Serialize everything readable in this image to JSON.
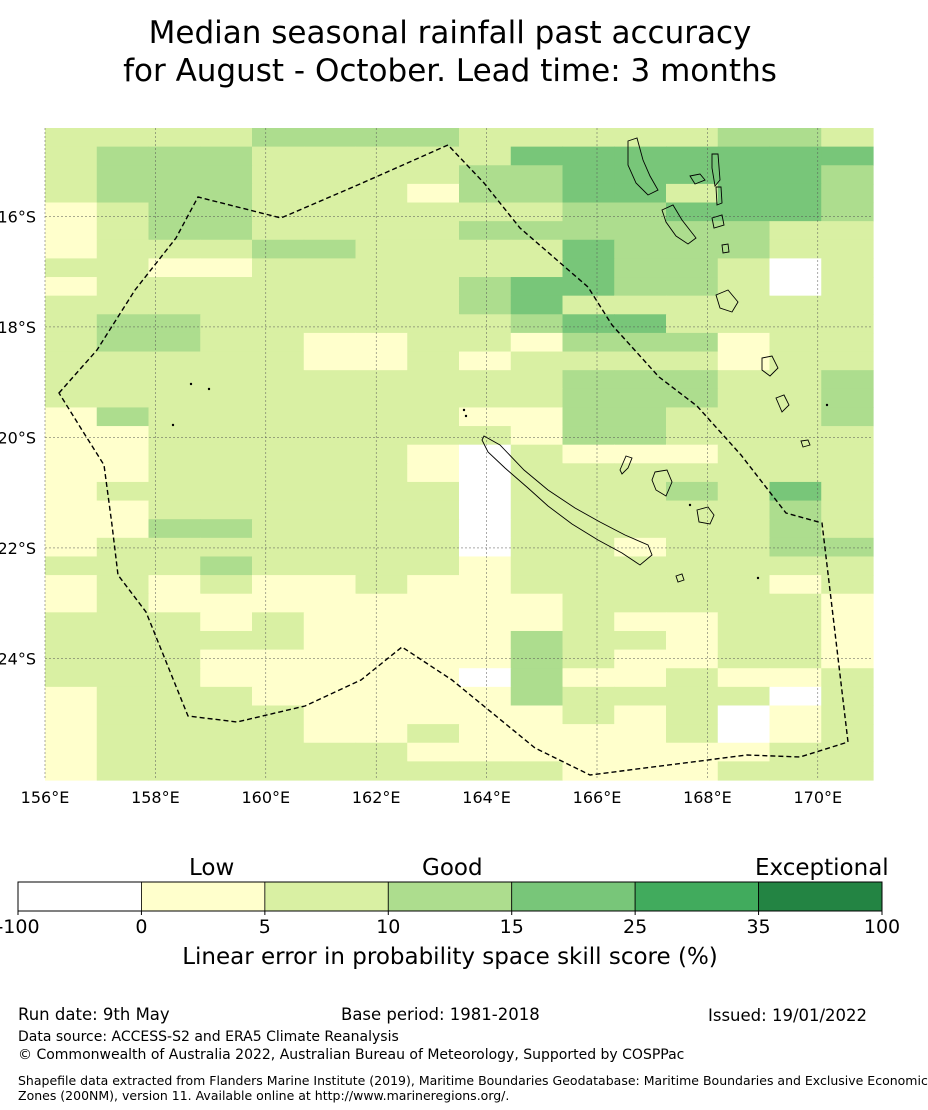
{
  "title": {
    "line1": "Median seasonal rainfall past accuracy",
    "line2": "for August - October. Lead time: 3 months"
  },
  "map": {
    "lon_labels": [
      "156°E",
      "158°E",
      "160°E",
      "162°E",
      "164°E",
      "166°E",
      "168°E",
      "170°E"
    ],
    "lat_labels": [
      "16°S",
      "18°S",
      "20°S",
      "22°S",
      "24°S"
    ],
    "lon_range": [
      156,
      171
    ],
    "lat_range": [
      -26.2,
      -14.4
    ],
    "grid": true,
    "boundary_style": "dashed"
  },
  "colorbar": {
    "categories": [
      "Low",
      "Good",
      "Exceptional"
    ],
    "ticks": [
      "-100",
      "0",
      "5",
      "10",
      "15",
      "25",
      "35",
      "100"
    ],
    "colors": [
      "#ffffff",
      "#ffffcc",
      "#d9f0a3",
      "#addd8e",
      "#78c679",
      "#41ab5d",
      "#238443"
    ],
    "caption": "Linear error in probability space skill score (%)"
  },
  "footer": {
    "run_date": "Run date: 9th May",
    "base_period": "Base period: 1981-2018",
    "issued": "Issued: 19/01/2022",
    "data_source": "Data source: ACCESS-S2 and ERA5 Climate Reanalysis",
    "copyright": "© Commonwealth of Australia 2022, Australian Bureau of Meteorology, Supported by COSPPac",
    "shapefile_line1": "Shapefile data extracted from Flanders Marine Institute (2019), Maritime Boundaries Geodatabase: Maritime Boundaries and Exclusive Economic",
    "shapefile_line2": "Zones (200NM), version 11. Available online at http://www.marineregions.org/."
  },
  "skill_grid": [
    "2222333322222332",
    "2333222224444444",
    "2333222233444443",
    "2333222133442443",
    "1233222222334443",
    "1233222233333322",
    "1222332222433322",
    "2211222222433202",
    "1222222234433202",
    "2222222234222222",
    "2332222223442222",
    "2332211221333122",
    "2222211212222122",
    "2222222222333223",
    "2222222222333223",
    "1322222211332223",
    "1122222221332222",
    "1122222102111222",
    "1122222102222222",
    "1222222202223242",
    "1122222202222232",
    "1133222202222232",
    "1222222202212233",
    "2223222212222222",
    "1212112112222212",
    "1211111111222221",
    "2221211111211221",
    "2222211113221221",
    "2221111113211221",
    "2221111103112112",
    "1222111113222202",
    "1222211111212012",
    "1222211211112012",
    "1222222111111122",
    "1222222222111222"
  ]
}
